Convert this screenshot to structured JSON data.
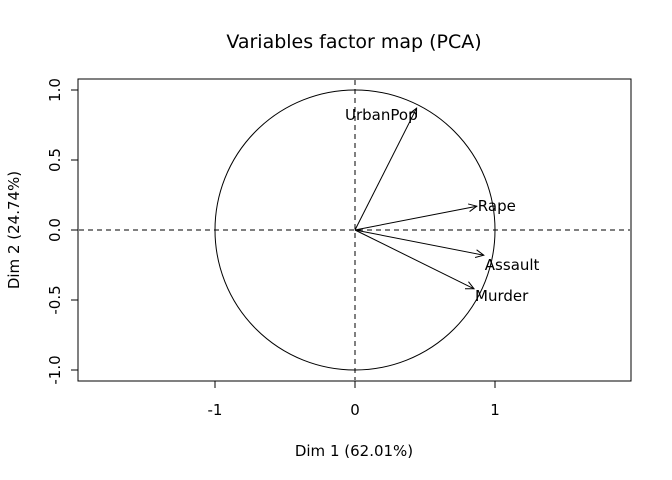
{
  "chart_data": {
    "type": "scatter",
    "title": "Variables factor map (PCA)",
    "xlabel": "Dim 1 (62.01%)",
    "ylabel": "Dim 2 (24.74%)",
    "xlim": [
      -1.95,
      1.95
    ],
    "ylim": [
      -1.07,
      1.07
    ],
    "x_ticks": [
      -1,
      0,
      1
    ],
    "x_tick_labels": [
      "-1",
      "0",
      "1"
    ],
    "y_ticks": [
      -1.0,
      -0.5,
      0.0,
      0.5,
      1.0
    ],
    "y_tick_labels": [
      "-1.0",
      "-0.5",
      "0.0",
      "0.5",
      "1.0"
    ],
    "unit_circle": true,
    "reference_lines": {
      "x": 0,
      "y": 0,
      "style": "dashed"
    },
    "variables": [
      {
        "name": "UrbanPop",
        "x": 0.44,
        "y": 0.87,
        "label_anchor": "end",
        "label_dy": -0.05
      },
      {
        "name": "Rape",
        "x": 0.87,
        "y": 0.17,
        "label_anchor": "start",
        "label_dy": 0.0
      },
      {
        "name": "Assault",
        "x": 0.92,
        "y": -0.18,
        "label_anchor": "start",
        "label_dy": -0.07
      },
      {
        "name": "Murder",
        "x": 0.85,
        "y": -0.42,
        "label_anchor": "start",
        "label_dy": -0.05
      }
    ],
    "grid": false
  }
}
